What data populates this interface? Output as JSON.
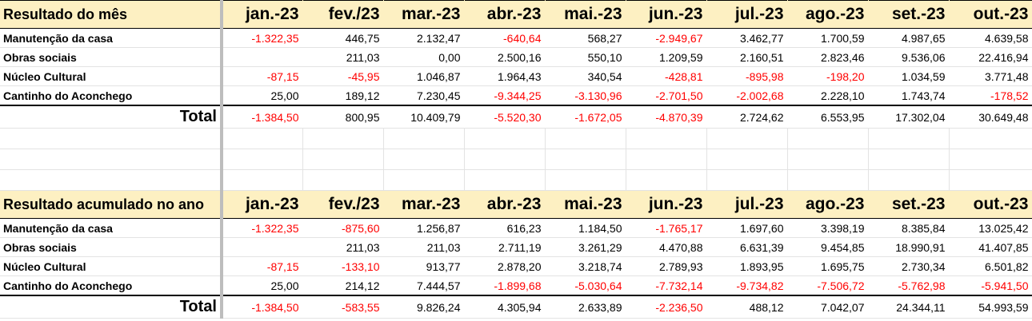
{
  "months": [
    "jan.-23",
    "fev./23",
    "mar.-23",
    "abr.-23",
    "mai.-23",
    "jun.-23",
    "jul.-23",
    "ago.-23",
    "set.-23",
    "out.-23"
  ],
  "colors": {
    "header_bg": "#fdf0c2",
    "negative": "#ff0000"
  },
  "monthly": {
    "title": "Resultado do mês",
    "rows": [
      {
        "label": "Manutenção da casa",
        "values": [
          "-1.322,35",
          "446,75",
          "2.132,47",
          "-640,64",
          "568,27",
          "-2.949,67",
          "3.462,77",
          "1.700,59",
          "4.987,65",
          "4.639,58"
        ]
      },
      {
        "label": "Obras sociais",
        "values": [
          "",
          "211,03",
          "0,00",
          "2.500,16",
          "550,10",
          "1.209,59",
          "2.160,51",
          "2.823,46",
          "9.536,06",
          "22.416,94"
        ]
      },
      {
        "label": "Núcleo Cultural",
        "values": [
          "-87,15",
          "-45,95",
          "1.046,87",
          "1.964,43",
          "340,54",
          "-428,81",
          "-895,98",
          "-198,20",
          "1.034,59",
          "3.771,48"
        ]
      },
      {
        "label": "Cantinho do Aconchego",
        "values": [
          "25,00",
          "189,12",
          "7.230,45",
          "-9.344,25",
          "-3.130,96",
          "-2.701,50",
          "-2.002,68",
          "2.228,10",
          "1.743,74",
          "-178,52"
        ]
      }
    ],
    "total": {
      "label": "Total",
      "values": [
        "-1.384,50",
        "800,95",
        "10.409,79",
        "-5.520,30",
        "-1.672,05",
        "-4.870,39",
        "2.724,62",
        "6.553,95",
        "17.302,04",
        "30.649,48"
      ]
    }
  },
  "cumulative": {
    "title": "Resultado acumulado no ano",
    "rows": [
      {
        "label": "Manutenção da casa",
        "values": [
          "-1.322,35",
          "-875,60",
          "1.256,87",
          "616,23",
          "1.184,50",
          "-1.765,17",
          "1.697,60",
          "3.398,19",
          "8.385,84",
          "13.025,42"
        ]
      },
      {
        "label": "Obras sociais",
        "values": [
          "",
          "211,03",
          "211,03",
          "2.711,19",
          "3.261,29",
          "4.470,88",
          "6.631,39",
          "9.454,85",
          "18.990,91",
          "41.407,85"
        ]
      },
      {
        "label": "Núcleo Cultural",
        "values": [
          "-87,15",
          "-133,10",
          "913,77",
          "2.878,20",
          "3.218,74",
          "2.789,93",
          "1.893,95",
          "1.695,75",
          "2.730,34",
          "6.501,82"
        ]
      },
      {
        "label": "Cantinho do Aconchego",
        "values": [
          "25,00",
          "214,12",
          "7.444,57",
          "-1.899,68",
          "-5.030,64",
          "-7.732,14",
          "-9.734,82",
          "-7.506,72",
          "-5.762,98",
          "-5.941,50"
        ]
      }
    ],
    "total": {
      "label": "Total",
      "values": [
        "-1.384,50",
        "-583,55",
        "9.826,24",
        "4.305,94",
        "2.633,89",
        "-2.236,50",
        "488,12",
        "7.042,07",
        "24.344,11",
        "54.993,59"
      ]
    }
  }
}
